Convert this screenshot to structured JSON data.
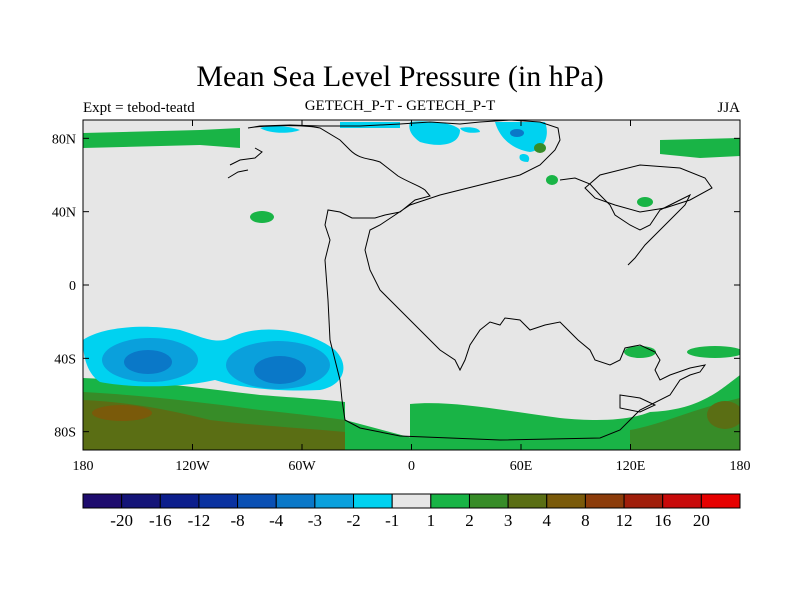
{
  "title": "Mean Sea Level Pressure (in hPa)",
  "subtitle_left": "Expt = tebod-teatd",
  "subtitle_center": "GETECH_P-T - GETECH_P-T",
  "subtitle_right": "JJA",
  "map": {
    "projection": "cylindrical-equidistant",
    "lon_range": [
      -180,
      180
    ],
    "lat_range": [
      -90,
      90
    ],
    "background_color": "#e6e6e6",
    "coastline_color": "#000000",
    "lon_ticks": [
      "180",
      "120W",
      "60W",
      "0",
      "60E",
      "120E",
      "180"
    ],
    "lat_ticks": [
      "80N",
      "40N",
      "0",
      "40S",
      "80S"
    ]
  },
  "colorbar": {
    "labels": [
      "-20",
      "-16",
      "-12",
      "-8",
      "-4",
      "-3",
      "-2",
      "-1",
      "1",
      "2",
      "3",
      "4",
      "8",
      "12",
      "16",
      "20"
    ],
    "colors": [
      "#1e0c6e",
      "#141478",
      "#0c1e8c",
      "#0a32a0",
      "#0a50b4",
      "#0a78c8",
      "#0aa0dc",
      "#00d2f0",
      "#e6e6e6",
      "#19b446",
      "#378c28",
      "#5a6e14",
      "#7a5a0a",
      "#8c3c0a",
      "#a01e0a",
      "#c80a0a",
      "#e60000"
    ]
  }
}
